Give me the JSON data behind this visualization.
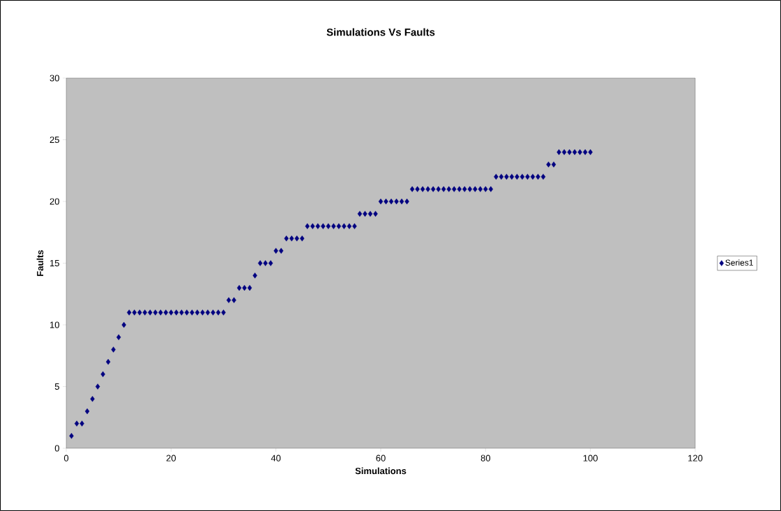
{
  "chart_data": {
    "type": "scatter",
    "title": "Simulations Vs Faults",
    "xlabel": "Simulations",
    "ylabel": "Faults",
    "x": [
      1,
      2,
      3,
      4,
      5,
      6,
      7,
      8,
      9,
      10,
      11,
      12,
      13,
      14,
      15,
      16,
      17,
      18,
      19,
      20,
      21,
      22,
      23,
      24,
      25,
      26,
      27,
      28,
      29,
      30,
      31,
      32,
      33,
      34,
      35,
      36,
      37,
      38,
      39,
      40,
      41,
      42,
      43,
      44,
      45,
      46,
      47,
      48,
      49,
      50,
      51,
      52,
      53,
      54,
      55,
      56,
      57,
      58,
      59,
      60,
      61,
      62,
      63,
      64,
      65,
      66,
      67,
      68,
      69,
      70,
      71,
      72,
      73,
      74,
      75,
      76,
      77,
      78,
      79,
      80,
      81,
      82,
      83,
      84,
      85,
      86,
      87,
      88,
      89,
      90,
      91,
      92,
      93,
      94,
      95,
      96,
      97,
      98,
      99,
      100
    ],
    "series": [
      {
        "name": "Series1",
        "color": "#000080",
        "values": [
          1,
          2,
          2,
          3,
          4,
          5,
          6,
          7,
          8,
          9,
          10,
          11,
          11,
          11,
          11,
          11,
          11,
          11,
          11,
          11,
          11,
          11,
          11,
          11,
          11,
          11,
          11,
          11,
          11,
          11,
          12,
          12,
          13,
          13,
          13,
          14,
          15,
          15,
          15,
          16,
          16,
          17,
          17,
          17,
          17,
          18,
          18,
          18,
          18,
          18,
          18,
          18,
          18,
          18,
          18,
          19,
          19,
          19,
          19,
          20,
          20,
          20,
          20,
          20,
          20,
          21,
          21,
          21,
          21,
          21,
          21,
          21,
          21,
          21,
          21,
          21,
          21,
          21,
          21,
          21,
          21,
          22,
          22,
          22,
          22,
          22,
          22,
          22,
          22,
          22,
          22,
          23,
          23,
          24,
          24,
          24,
          24,
          24,
          24,
          24
        ]
      }
    ],
    "xlim": [
      0,
      120
    ],
    "ylim": [
      0,
      30
    ],
    "xticks": [
      0,
      20,
      40,
      60,
      80,
      100,
      120
    ],
    "yticks": [
      0,
      5,
      10,
      15,
      20,
      25,
      30
    ],
    "marker": "diamond",
    "grid": false,
    "legend": "right"
  }
}
